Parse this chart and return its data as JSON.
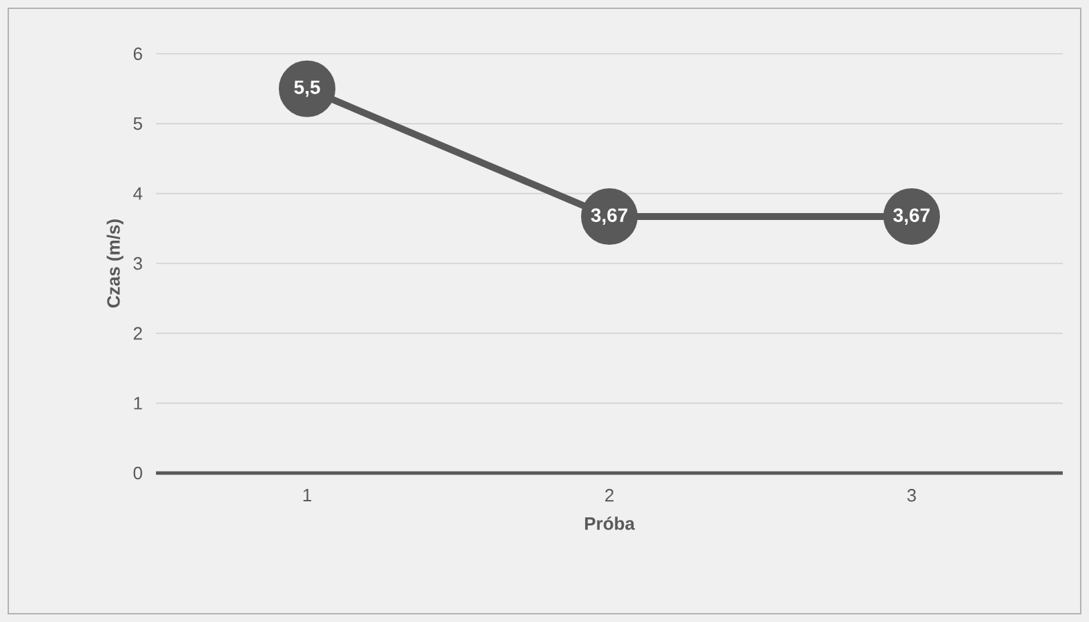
{
  "chart_data": {
    "type": "line",
    "xlabel": "Próba",
    "ylabel": "Czas (m/s)",
    "categories": [
      "1",
      "2",
      "3"
    ],
    "series": [
      {
        "color": "#595959",
        "values": [
          5.5,
          3.67,
          3.67
        ],
        "value_labels": [
          "5,5",
          "3,67",
          "3,67"
        ]
      }
    ],
    "ylim": [
      0,
      6
    ],
    "yticks": [
      0,
      1,
      2,
      3,
      4,
      5,
      6
    ],
    "grid": "y",
    "marker": "circle",
    "line_style": "solid",
    "legend": false
  }
}
